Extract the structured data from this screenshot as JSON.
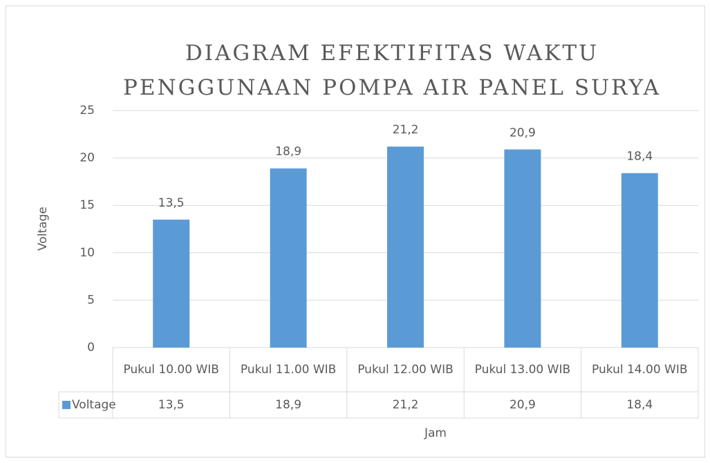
{
  "chart_data": {
    "type": "bar",
    "title": "Diagram Efektifitas Waktu Penggunaan Pompa Air Panel Surya",
    "x_label": "Jam",
    "y_label": "Voltage",
    "categories": [
      "Pukul 10.00 WIB",
      "Pukul 11.00 WIB",
      "Pukul 12.00 WIB",
      "Pukul 13.00 WIB",
      "Pukul 14.00 WIB"
    ],
    "series": [
      {
        "name": "Voltage",
        "color": "#5b9bd5",
        "values": [
          13.5,
          18.9,
          21.2,
          20.9,
          18.4
        ],
        "value_labels": [
          "13,5",
          "18,9",
          "21,2",
          "20,9",
          "18,4"
        ]
      }
    ],
    "ylim": [
      0,
      25
    ],
    "yticks": [
      0,
      5,
      10,
      15,
      20,
      25
    ],
    "grid": true,
    "data_table": true
  }
}
